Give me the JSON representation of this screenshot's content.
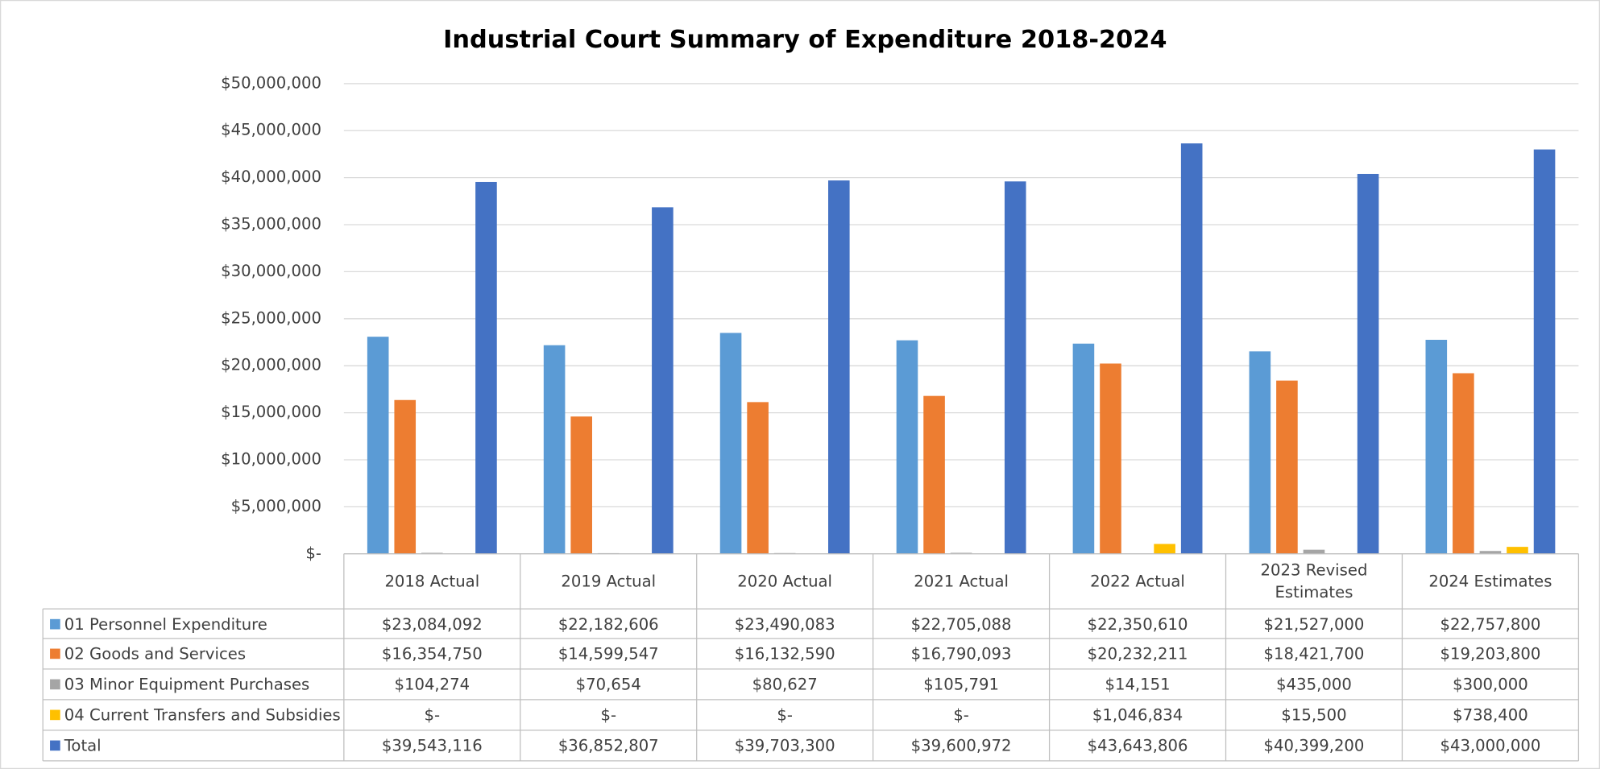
{
  "chart_data": {
    "type": "bar",
    "title": "Industrial Court Summary of Expenditure 2018-2024",
    "categories": [
      "2018 Actual",
      "2019 Actual",
      "2020 Actual",
      "2021 Actual",
      "2022 Actual",
      "2023 Revised Estimates",
      "2024 Estimates"
    ],
    "series": [
      {
        "name": "01 Personnel Expenditure",
        "color": "#5b9bd5",
        "values": [
          23084092,
          22182606,
          23490083,
          22705088,
          22350610,
          21527000,
          22757800
        ],
        "value_labels": [
          "$23,084,092",
          "$22,182,606",
          "$23,490,083",
          "$22,705,088",
          "$22,350,610",
          "$21,527,000",
          "$22,757,800"
        ]
      },
      {
        "name": "02 Goods and Services",
        "color": "#ed7d31",
        "values": [
          16354750,
          14599547,
          16132590,
          16790093,
          20232211,
          18421700,
          19203800
        ],
        "value_labels": [
          "$16,354,750",
          "$14,599,547",
          "$16,132,590",
          "$16,790,093",
          "$20,232,211",
          "$18,421,700",
          "$19,203,800"
        ]
      },
      {
        "name": "03 Minor Equipment Purchases",
        "color": "#a5a5a5",
        "values": [
          104274,
          70654,
          80627,
          105791,
          14151,
          435000,
          300000
        ],
        "value_labels": [
          "$104,274",
          "$70,654",
          "$80,627",
          "$105,791",
          "$14,151",
          "$435,000",
          "$300,000"
        ]
      },
      {
        "name": "04 Current Transfers and Subsidies",
        "color": "#ffc000",
        "values": [
          0,
          0,
          0,
          0,
          1046834,
          15500,
          738400
        ],
        "value_labels": [
          "$-",
          "$-",
          "$-",
          "$-",
          "$1,046,834",
          "$15,500",
          "$738,400"
        ]
      },
      {
        "name": "Total",
        "color": "#4472c4",
        "values": [
          39543116,
          36852807,
          39703300,
          39600972,
          43643806,
          40399200,
          43000000
        ],
        "value_labels": [
          "$39,543,116",
          "$36,852,807",
          "$39,703,300",
          "$39,600,972",
          "$43,643,806",
          "$40,399,200",
          "$43,000,000"
        ]
      }
    ],
    "ylim": [
      0,
      50000000
    ],
    "yticks": [
      {
        "value": 0,
        "label": "$-"
      },
      {
        "value": 5000000,
        "label": "$5,000,000"
      },
      {
        "value": 10000000,
        "label": "$10,000,000"
      },
      {
        "value": 15000000,
        "label": "$15,000,000"
      },
      {
        "value": 20000000,
        "label": "$20,000,000"
      },
      {
        "value": 25000000,
        "label": "$25,000,000"
      },
      {
        "value": 30000000,
        "label": "$30,000,000"
      },
      {
        "value": 35000000,
        "label": "$35,000,000"
      },
      {
        "value": 40000000,
        "label": "$40,000,000"
      },
      {
        "value": 45000000,
        "label": "$45,000,000"
      },
      {
        "value": 50000000,
        "label": "$50,000,000"
      }
    ],
    "grid": true
  }
}
